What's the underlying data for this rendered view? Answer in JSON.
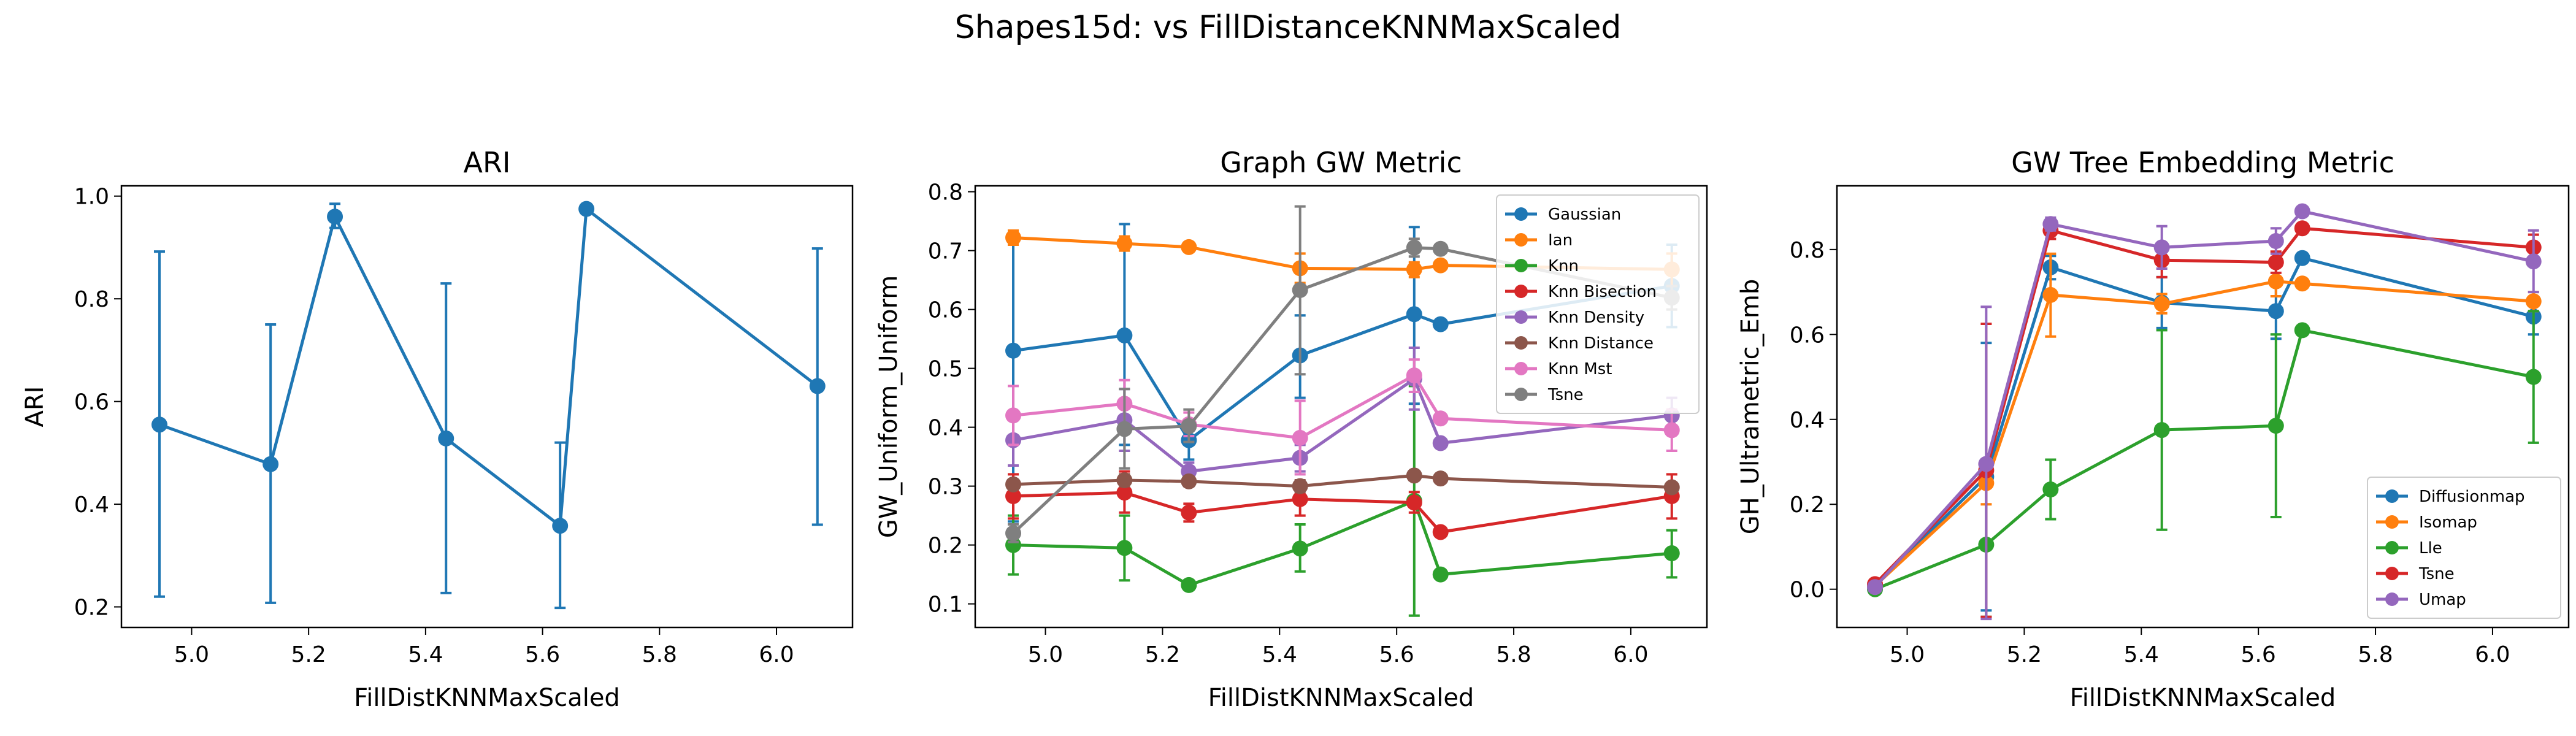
{
  "figure": {
    "suptitle": "Shapes15d: vs FillDistanceKNNMaxScaled"
  },
  "chart_data": [
    {
      "type": "line",
      "title": "ARI",
      "xlabel": "FillDistKNNMaxScaled",
      "ylabel": "ARI",
      "xlim": [
        4.88,
        6.13
      ],
      "ylim": [
        0.16,
        1.02
      ],
      "xticks": [
        5.0,
        5.2,
        5.4,
        5.6,
        5.8,
        6.0
      ],
      "yticks": [
        0.2,
        0.4,
        0.6,
        0.8,
        1.0
      ],
      "legend": null,
      "series": [
        {
          "color": "#1f77b4",
          "points": [
            {
              "x": 4.945,
              "y": 0.555,
              "lo": 0.22,
              "hi": 0.892
            },
            {
              "x": 5.135,
              "y": 0.478,
              "lo": 0.208,
              "hi": 0.75
            },
            {
              "x": 5.245,
              "y": 0.96,
              "lo": 0.938,
              "hi": 0.985
            },
            {
              "x": 5.435,
              "y": 0.528,
              "lo": 0.227,
              "hi": 0.83
            },
            {
              "x": 5.63,
              "y": 0.358,
              "lo": 0.198,
              "hi": 0.52
            },
            {
              "x": 5.675,
              "y": 0.975,
              "lo": null,
              "hi": null
            },
            {
              "x": 6.07,
              "y": 0.63,
              "lo": 0.36,
              "hi": 0.898
            }
          ]
        }
      ]
    },
    {
      "type": "line",
      "title": "Graph GW Metric",
      "xlabel": "FillDistKNNMaxScaled",
      "ylabel": "GW_Uniform_Uniform",
      "xlim": [
        4.88,
        6.13
      ],
      "ylim": [
        0.06,
        0.81
      ],
      "xticks": [
        5.0,
        5.2,
        5.4,
        5.6,
        5.8,
        6.0
      ],
      "yticks": [
        0.1,
        0.2,
        0.3,
        0.4,
        0.5,
        0.6,
        0.7,
        0.8
      ],
      "legend": "top-right",
      "series": [
        {
          "name": "Gaussian",
          "color": "#1f77b4",
          "points": [
            {
              "x": 4.945,
              "y": 0.53,
              "lo": 0.24,
              "hi": 0.73
            },
            {
              "x": 5.135,
              "y": 0.556,
              "lo": 0.37,
              "hi": 0.745
            },
            {
              "x": 5.245,
              "y": 0.378,
              "lo": 0.345,
              "hi": 0.405
            },
            {
              "x": 5.435,
              "y": 0.522,
              "lo": 0.45,
              "hi": 0.59
            },
            {
              "x": 5.63,
              "y": 0.592,
              "lo": 0.44,
              "hi": 0.74
            },
            {
              "x": 5.675,
              "y": 0.575,
              "lo": null,
              "hi": null
            },
            {
              "x": 6.07,
              "y": 0.64,
              "lo": 0.57,
              "hi": 0.71
            }
          ]
        },
        {
          "name": "Ian",
          "color": "#ff7f0e",
          "points": [
            {
              "x": 4.945,
              "y": 0.722,
              "lo": 0.71,
              "hi": 0.734
            },
            {
              "x": 5.135,
              "y": 0.712,
              "lo": 0.7,
              "hi": 0.724
            },
            {
              "x": 5.245,
              "y": 0.706,
              "lo": 0.7,
              "hi": 0.712
            },
            {
              "x": 5.435,
              "y": 0.67,
              "lo": 0.645,
              "hi": 0.695
            },
            {
              "x": 5.63,
              "y": 0.668,
              "lo": 0.655,
              "hi": 0.68
            },
            {
              "x": 5.675,
              "y": 0.675,
              "lo": null,
              "hi": null
            },
            {
              "x": 6.07,
              "y": 0.668,
              "lo": 0.64,
              "hi": 0.695
            }
          ]
        },
        {
          "name": "Knn",
          "color": "#2ca02c",
          "points": [
            {
              "x": 4.945,
              "y": 0.2,
              "lo": 0.15,
              "hi": 0.25
            },
            {
              "x": 5.135,
              "y": 0.195,
              "lo": 0.14,
              "hi": 0.25
            },
            {
              "x": 5.245,
              "y": 0.132,
              "lo": 0.125,
              "hi": 0.14
            },
            {
              "x": 5.435,
              "y": 0.194,
              "lo": 0.155,
              "hi": 0.235
            },
            {
              "x": 5.63,
              "y": 0.275,
              "lo": 0.08,
              "hi": 0.47
            },
            {
              "x": 5.675,
              "y": 0.15,
              "lo": null,
              "hi": null
            },
            {
              "x": 6.07,
              "y": 0.186,
              "lo": 0.145,
              "hi": 0.225
            }
          ]
        },
        {
          "name": "Knn Bisection",
          "color": "#d62728",
          "points": [
            {
              "x": 4.945,
              "y": 0.283,
              "lo": 0.245,
              "hi": 0.32
            },
            {
              "x": 5.135,
              "y": 0.289,
              "lo": 0.255,
              "hi": 0.325
            },
            {
              "x": 5.245,
              "y": 0.255,
              "lo": 0.24,
              "hi": 0.27
            },
            {
              "x": 5.435,
              "y": 0.278,
              "lo": 0.25,
              "hi": 0.305
            },
            {
              "x": 5.63,
              "y": 0.272,
              "lo": 0.255,
              "hi": 0.29
            },
            {
              "x": 5.675,
              "y": 0.222,
              "lo": null,
              "hi": null
            },
            {
              "x": 6.07,
              "y": 0.283,
              "lo": 0.245,
              "hi": 0.32
            }
          ]
        },
        {
          "name": "Knn Density",
          "color": "#9467bd",
          "points": [
            {
              "x": 4.945,
              "y": 0.378,
              "lo": 0.335,
              "hi": 0.42
            },
            {
              "x": 5.135,
              "y": 0.412,
              "lo": 0.36,
              "hi": 0.465
            },
            {
              "x": 5.245,
              "y": 0.325,
              "lo": 0.31,
              "hi": 0.34
            },
            {
              "x": 5.435,
              "y": 0.348,
              "lo": 0.325,
              "hi": 0.37
            },
            {
              "x": 5.63,
              "y": 0.482,
              "lo": 0.43,
              "hi": 0.535
            },
            {
              "x": 5.675,
              "y": 0.373,
              "lo": null,
              "hi": null
            },
            {
              "x": 6.07,
              "y": 0.42,
              "lo": 0.39,
              "hi": 0.45
            }
          ]
        },
        {
          "name": "Knn Distance",
          "color": "#8c564b",
          "points": [
            {
              "x": 4.945,
              "y": 0.303,
              "lo": 0.295,
              "hi": 0.31
            },
            {
              "x": 5.135,
              "y": 0.31,
              "lo": 0.3,
              "hi": 0.32
            },
            {
              "x": 5.245,
              "y": 0.308,
              "lo": 0.3,
              "hi": 0.316
            },
            {
              "x": 5.435,
              "y": 0.3,
              "lo": 0.29,
              "hi": 0.31
            },
            {
              "x": 5.63,
              "y": 0.318,
              "lo": 0.31,
              "hi": 0.325
            },
            {
              "x": 5.675,
              "y": 0.313,
              "lo": null,
              "hi": null
            },
            {
              "x": 6.07,
              "y": 0.298,
              "lo": 0.29,
              "hi": 0.305
            }
          ]
        },
        {
          "name": "Knn Mst",
          "color": "#e377c2",
          "points": [
            {
              "x": 4.945,
              "y": 0.42,
              "lo": 0.37,
              "hi": 0.47
            },
            {
              "x": 5.135,
              "y": 0.44,
              "lo": 0.4,
              "hi": 0.48
            },
            {
              "x": 5.245,
              "y": 0.405,
              "lo": 0.385,
              "hi": 0.425
            },
            {
              "x": 5.435,
              "y": 0.382,
              "lo": 0.32,
              "hi": 0.445
            },
            {
              "x": 5.63,
              "y": 0.488,
              "lo": 0.46,
              "hi": 0.515
            },
            {
              "x": 5.675,
              "y": 0.415,
              "lo": null,
              "hi": null
            },
            {
              "x": 6.07,
              "y": 0.395,
              "lo": 0.36,
              "hi": 0.43
            }
          ]
        },
        {
          "name": "Tsne",
          "color": "#7f7f7f",
          "points": [
            {
              "x": 4.945,
              "y": 0.22,
              "lo": 0.205,
              "hi": 0.235
            },
            {
              "x": 5.135,
              "y": 0.397,
              "lo": 0.33,
              "hi": 0.465
            },
            {
              "x": 5.245,
              "y": 0.402,
              "lo": 0.375,
              "hi": 0.43
            },
            {
              "x": 5.435,
              "y": 0.633,
              "lo": 0.49,
              "hi": 0.775
            },
            {
              "x": 5.63,
              "y": 0.705,
              "lo": 0.69,
              "hi": 0.72
            },
            {
              "x": 5.675,
              "y": 0.703,
              "lo": null,
              "hi": null
            },
            {
              "x": 6.07,
              "y": 0.62,
              "lo": 0.6,
              "hi": 0.64
            }
          ]
        }
      ]
    },
    {
      "type": "line",
      "title": "GW Tree Embedding Metric",
      "xlabel": "FillDistKNNMaxScaled",
      "ylabel": "GH_Ultrametric_Emb",
      "xlim": [
        4.88,
        6.13
      ],
      "ylim": [
        -0.09,
        0.95
      ],
      "xticks": [
        5.0,
        5.2,
        5.4,
        5.6,
        5.8,
        6.0
      ],
      "yticks": [
        0.0,
        0.2,
        0.4,
        0.6,
        0.8
      ],
      "legend": "bottom-right",
      "series": [
        {
          "name": "Diffusionmap",
          "color": "#1f77b4",
          "points": [
            {
              "x": 4.945,
              "y": 0.008,
              "lo": 0.0,
              "hi": 0.016
            },
            {
              "x": 5.135,
              "y": 0.265,
              "lo": -0.05,
              "hi": 0.58
            },
            {
              "x": 5.245,
              "y": 0.758,
              "lo": 0.73,
              "hi": 0.785
            },
            {
              "x": 5.435,
              "y": 0.675,
              "lo": 0.615,
              "hi": 0.735
            },
            {
              "x": 5.63,
              "y": 0.655,
              "lo": 0.59,
              "hi": 0.72
            },
            {
              "x": 5.675,
              "y": 0.78,
              "lo": null,
              "hi": null
            },
            {
              "x": 6.07,
              "y": 0.642,
              "lo": 0.6,
              "hi": 0.685
            }
          ]
        },
        {
          "name": "Isomap",
          "color": "#ff7f0e",
          "points": [
            {
              "x": 4.945,
              "y": 0.008,
              "lo": 0.0,
              "hi": 0.016
            },
            {
              "x": 5.135,
              "y": 0.25,
              "lo": 0.2,
              "hi": 0.3
            },
            {
              "x": 5.245,
              "y": 0.693,
              "lo": 0.595,
              "hi": 0.79
            },
            {
              "x": 5.435,
              "y": 0.672,
              "lo": 0.65,
              "hi": 0.695
            },
            {
              "x": 5.63,
              "y": 0.725,
              "lo": 0.69,
              "hi": 0.76
            },
            {
              "x": 5.675,
              "y": 0.72,
              "lo": null,
              "hi": null
            },
            {
              "x": 6.07,
              "y": 0.678,
              "lo": 0.655,
              "hi": 0.7
            }
          ]
        },
        {
          "name": "Lle",
          "color": "#2ca02c",
          "points": [
            {
              "x": 4.945,
              "y": 0.0,
              "lo": -0.005,
              "hi": 0.005
            },
            {
              "x": 5.135,
              "y": 0.105,
              "lo": -0.065,
              "hi": 0.275
            },
            {
              "x": 5.245,
              "y": 0.235,
              "lo": 0.165,
              "hi": 0.305
            },
            {
              "x": 5.435,
              "y": 0.375,
              "lo": 0.14,
              "hi": 0.61
            },
            {
              "x": 5.63,
              "y": 0.385,
              "lo": 0.17,
              "hi": 0.6
            },
            {
              "x": 5.675,
              "y": 0.61,
              "lo": null,
              "hi": null
            },
            {
              "x": 6.07,
              "y": 0.5,
              "lo": 0.345,
              "hi": 0.655
            }
          ]
        },
        {
          "name": "Tsne",
          "color": "#d62728",
          "points": [
            {
              "x": 4.945,
              "y": 0.012,
              "lo": 0.004,
              "hi": 0.02
            },
            {
              "x": 5.135,
              "y": 0.28,
              "lo": -0.065,
              "hi": 0.625
            },
            {
              "x": 5.245,
              "y": 0.845,
              "lo": 0.825,
              "hi": 0.865
            },
            {
              "x": 5.435,
              "y": 0.775,
              "lo": 0.735,
              "hi": 0.815
            },
            {
              "x": 5.63,
              "y": 0.77,
              "lo": 0.745,
              "hi": 0.795
            },
            {
              "x": 5.675,
              "y": 0.85,
              "lo": null,
              "hi": null
            },
            {
              "x": 6.07,
              "y": 0.805,
              "lo": 0.775,
              "hi": 0.835
            }
          ]
        },
        {
          "name": "Umap",
          "color": "#9467bd",
          "points": [
            {
              "x": 4.945,
              "y": 0.005,
              "lo": 0.0,
              "hi": 0.01
            },
            {
              "x": 5.135,
              "y": 0.295,
              "lo": -0.07,
              "hi": 0.665
            },
            {
              "x": 5.245,
              "y": 0.86,
              "lo": 0.845,
              "hi": 0.875
            },
            {
              "x": 5.435,
              "y": 0.805,
              "lo": 0.755,
              "hi": 0.855
            },
            {
              "x": 5.63,
              "y": 0.82,
              "lo": 0.79,
              "hi": 0.85
            },
            {
              "x": 5.675,
              "y": 0.89,
              "lo": null,
              "hi": null
            },
            {
              "x": 6.07,
              "y": 0.772,
              "lo": 0.7,
              "hi": 0.845
            }
          ]
        }
      ]
    }
  ]
}
